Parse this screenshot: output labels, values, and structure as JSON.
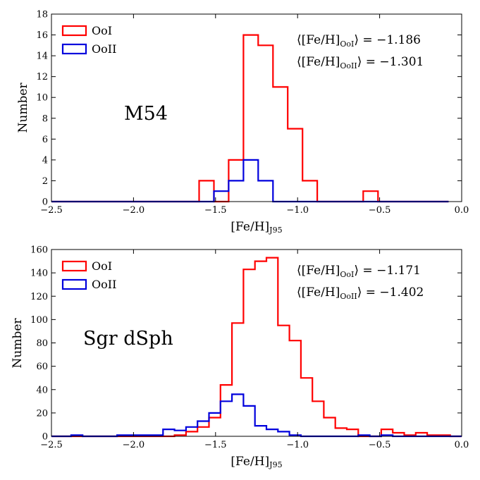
{
  "colors": {
    "OoI": "#ff0000",
    "OoII": "#0000dd"
  },
  "chart_data": [
    {
      "type": "histogram",
      "panel_label": "M54",
      "xlabel_main": "[Fe/H]",
      "xlabel_sub": "J95",
      "ylabel": "Number",
      "xlim": [
        -2.5,
        0.0
      ],
      "ylim": [
        0,
        18
      ],
      "xticks": [
        "−2.5",
        "−2.0",
        "−1.5",
        "−1.0",
        "−0.5",
        "0.0"
      ],
      "xtick_values": [
        -2.5,
        -2.0,
        -1.5,
        -1.0,
        -0.5,
        0.0
      ],
      "yticks": [
        "0",
        "2",
        "4",
        "6",
        "8",
        "10",
        "12",
        "14",
        "16",
        "18"
      ],
      "ytick_values": [
        0,
        2,
        4,
        6,
        8,
        10,
        12,
        14,
        16,
        18
      ],
      "legend": [
        "OoI",
        "OoII"
      ],
      "annotations": [
        {
          "prefix": "⟨[Fe/H]",
          "sub": "OoI",
          "suffix": "⟩  = −1.186"
        },
        {
          "prefix": "⟨[Fe/H]",
          "sub": "OoII",
          "suffix": "⟩ = −1.301"
        }
      ],
      "series": [
        {
          "name": "OoI",
          "bin_edges": [
            -2.5,
            -1.6,
            -1.51,
            -1.42,
            -1.33,
            -1.24,
            -1.15,
            -1.06,
            -0.97,
            -0.88,
            -0.6,
            -0.51,
            -0.08
          ],
          "counts": [
            0,
            2,
            0,
            4,
            16,
            15,
            11,
            7,
            2,
            0,
            1,
            0
          ]
        },
        {
          "name": "OoII",
          "bin_edges": [
            -2.5,
            -1.51,
            -1.42,
            -1.33,
            -1.24,
            -1.15,
            -0.08
          ],
          "counts": [
            0,
            1,
            2,
            4,
            2,
            0
          ]
        }
      ]
    },
    {
      "type": "histogram",
      "panel_label": "Sgr dSph",
      "xlabel_main": "[Fe/H]",
      "xlabel_sub": "J95",
      "ylabel": "Number",
      "xlim": [
        -2.5,
        0.0
      ],
      "ylim": [
        0,
        160
      ],
      "xticks": [
        "−2.5",
        "−2.0",
        "−1.5",
        "−1.0",
        "−0.5",
        "0.0"
      ],
      "xtick_values": [
        -2.5,
        -2.0,
        -1.5,
        -1.0,
        -0.5,
        0.0
      ],
      "yticks": [
        "0",
        "20",
        "40",
        "60",
        "80",
        "100",
        "120",
        "140",
        "160"
      ],
      "ytick_values": [
        0,
        20,
        40,
        60,
        80,
        100,
        120,
        140,
        160
      ],
      "legend": [
        "OoI",
        "OoII"
      ],
      "annotations": [
        {
          "prefix": "⟨[Fe/H]",
          "sub": "OoI",
          "suffix": "⟩  = −1.171"
        },
        {
          "prefix": "⟨[Fe/H]",
          "sub": "OoII",
          "suffix": "⟩ = −1.402"
        }
      ],
      "series": [
        {
          "name": "OoI",
          "bin_edges": [
            -2.5,
            -2.38,
            -2.31,
            -2.1,
            -2.03,
            -1.75,
            -1.68,
            -1.61,
            -1.54,
            -1.47,
            -1.4,
            -1.33,
            -1.26,
            -1.19,
            -1.12,
            -1.05,
            -0.98,
            -0.91,
            -0.84,
            -0.77,
            -0.7,
            -0.63,
            -0.56,
            -0.49,
            -0.42,
            -0.35,
            -0.28,
            -0.21,
            -0.14,
            -0.07,
            0.0
          ],
          "counts": [
            0,
            0,
            0,
            0,
            0,
            1,
            4,
            8,
            16,
            44,
            97,
            143,
            150,
            153,
            95,
            82,
            50,
            30,
            16,
            7,
            6,
            0,
            0,
            6,
            3,
            1,
            3,
            1,
            1,
            0
          ]
        },
        {
          "name": "OoII",
          "bin_edges": [
            -2.5,
            -2.38,
            -2.31,
            -2.1,
            -2.03,
            -1.82,
            -1.75,
            -1.68,
            -1.61,
            -1.54,
            -1.47,
            -1.4,
            -1.33,
            -1.26,
            -1.19,
            -1.12,
            -1.05,
            -0.98,
            -0.91,
            -0.84,
            -0.77,
            -0.63,
            -0.56,
            -0.49,
            -0.42,
            -0.35,
            -0.28,
            0.0
          ],
          "counts": [
            0,
            1,
            0,
            1,
            1,
            6,
            5,
            8,
            13,
            20,
            30,
            36,
            26,
            9,
            6,
            4,
            1,
            0,
            0,
            0,
            0,
            1,
            0,
            1,
            0,
            0,
            0
          ]
        }
      ]
    }
  ]
}
